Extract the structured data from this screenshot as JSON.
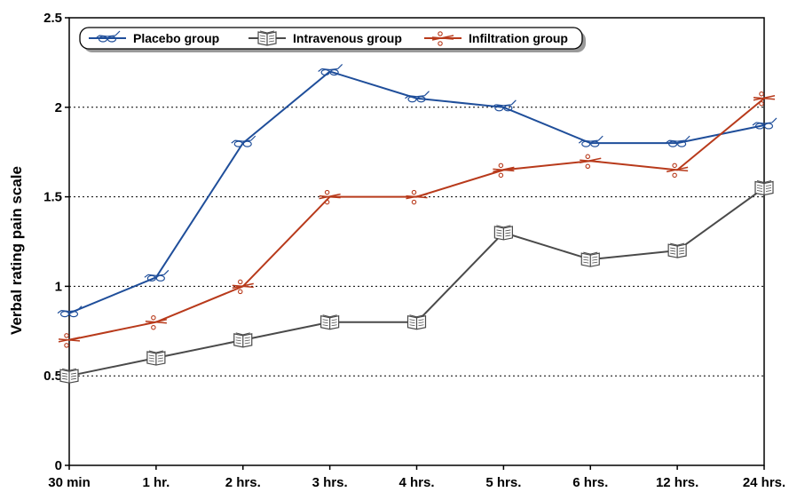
{
  "chart_data": {
    "type": "line",
    "title": "",
    "xlabel": "",
    "ylabel": "Verbal rating pain scale",
    "categories": [
      "30 min",
      "1 hr.",
      "2 hrs.",
      "3 hrs.",
      "4 hrs.",
      "5 hrs.",
      "6 hrs.",
      "12 hrs.",
      "24 hrs."
    ],
    "ylim": [
      0,
      2.5
    ],
    "yticks": [
      0,
      0.5,
      1,
      1.5,
      2,
      2.5
    ],
    "ytick_labels": [
      "0",
      "0.5",
      "1",
      "1.5",
      "2",
      "2.5"
    ],
    "grid": "horizontal-dotted",
    "legend_position": "top-left",
    "series": [
      {
        "name": "Placebo group",
        "color": "#1f4e9a",
        "marker": "glasses-icon",
        "values": [
          0.85,
          1.05,
          1.8,
          2.2,
          2.05,
          2.0,
          1.8,
          1.8,
          1.9
        ]
      },
      {
        "name": "Intravenous group",
        "color": "#4a4a4a",
        "marker": "book-icon",
        "values": [
          0.5,
          0.6,
          0.7,
          0.8,
          0.8,
          1.3,
          1.15,
          1.2,
          1.55
        ]
      },
      {
        "name": "Infiltration group",
        "color": "#b83a1b",
        "marker": "scissors-icon",
        "values": [
          0.7,
          0.8,
          1.0,
          1.5,
          1.5,
          1.65,
          1.7,
          1.65,
          2.05
        ]
      }
    ]
  }
}
